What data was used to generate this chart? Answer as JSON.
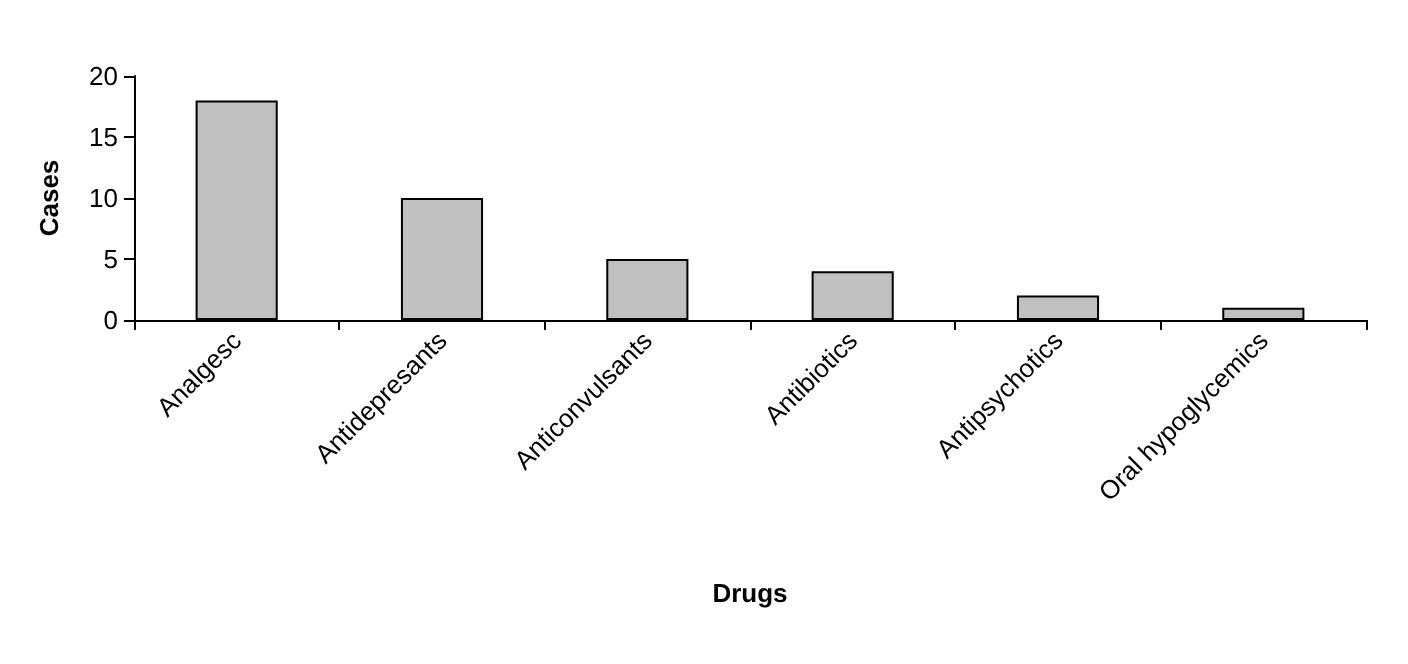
{
  "chart_data": {
    "type": "bar",
    "xlabel": "Drugs",
    "ylabel": "Cases",
    "categories": [
      "Analgesc",
      "Antidepresants",
      "Anticonvulsants",
      "Antibiotics",
      "Antipsychotics",
      "Oral hypoglycemics"
    ],
    "values": [
      18,
      10,
      5,
      4,
      2,
      1
    ],
    "color": "#c0c0c0",
    "ylim": [
      0,
      20
    ],
    "yticks": [
      0,
      5,
      10,
      15,
      20
    ],
    "grid": false
  }
}
